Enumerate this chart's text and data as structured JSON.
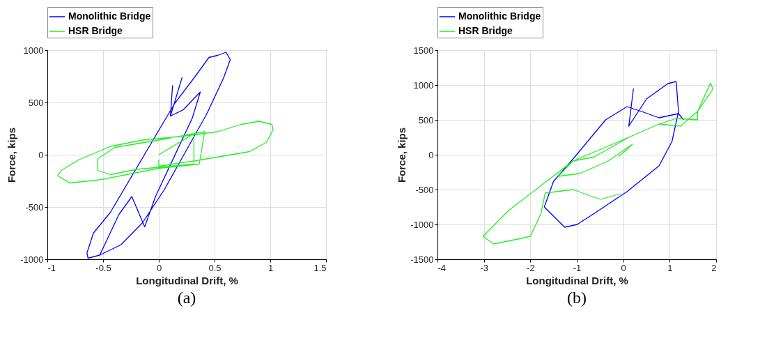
{
  "chart_data": [
    {
      "type": "line",
      "xlabel": "Longitudinal Drift, %",
      "ylabel": "Force, kips",
      "xlim": [
        -1,
        1.5
      ],
      "xticks": [
        -1,
        -0.5,
        0,
        0.5,
        1,
        1.5
      ],
      "ylim": [
        -1000,
        1000
      ],
      "yticks": [
        -1000,
        -500,
        0,
        500,
        1000
      ],
      "grid": true,
      "legend": "top",
      "annotations": [
        "(a)"
      ],
      "series": [
        {
          "name": "Monolithic Bridge",
          "color": "#0000ff",
          "line_style": "solid",
          "x": [
            0.209,
            0.104,
            0.123,
            0.104,
            0.219,
            0.372,
            0.3,
            -0.03,
            -0.127,
            -0.242,
            -0.357,
            -0.53,
            -0.635,
            -0.645,
            -0.587,
            -0.434,
            0.142,
            0.334,
            0.449,
            0.526,
            0.603,
            0.641,
            0.583,
            0.43,
            0.046,
            -0.146,
            -0.338,
            -0.53
          ],
          "values": [
            740,
            370,
            660,
            370,
            430,
            600,
            350,
            -400,
            -690,
            -400,
            -570,
            -960,
            -990,
            -940,
            -750,
            -550,
            490,
            760,
            930,
            950,
            980,
            910,
            740,
            390,
            -340,
            -650,
            -860,
            -960
          ]
        },
        {
          "name": "HSR Bridge",
          "color": "#22ee22",
          "line_style": "solid",
          "x": [
            0,
            0.315,
            0.315,
            -0.203,
            -0.434,
            -0.549,
            -0.549,
            -0.395,
            0,
            0.411,
            0.363,
            0,
            -0.53,
            -0.8,
            -0.908,
            -0.875,
            -0.722,
            -0.434,
            -0.146,
            0.238,
            0.526,
            0.737,
            0.9,
            1.015,
            1.025,
            0.967,
            0.814,
            0.372,
            0,
            0
          ],
          "values": [
            0,
            200,
            -90,
            -140,
            -190,
            -150,
            -40,
            70,
            140,
            220,
            -90,
            -130,
            -240,
            -270,
            -200,
            -150,
            -50,
            80,
            140,
            180,
            220,
            290,
            320,
            290,
            240,
            120,
            30,
            -50,
            -110,
            -50
          ]
        }
      ]
    },
    {
      "type": "line",
      "xlabel": "Longitudinal Drift, %",
      "ylabel": "Force, kips",
      "xlim": [
        -4,
        2
      ],
      "xticks": [
        -4,
        -3,
        -2,
        -1,
        0,
        1,
        2
      ],
      "ylim": [
        -1500,
        1500
      ],
      "yticks": [
        -1500,
        -1000,
        -500,
        0,
        500,
        1000,
        1500
      ],
      "grid": true,
      "legend": "top",
      "annotations": [
        "(b)"
      ],
      "series": [
        {
          "name": "Monolithic Bridge",
          "color": "#0000ff",
          "line_style": "solid",
          "x": [
            0.22,
            0.12,
            0.5,
            0.96,
            1.14,
            1.19,
            1.05,
            0.77,
            0.08,
            -0.62,
            -0.99,
            -1.26,
            -1.7,
            -1.5,
            -1.08,
            -0.38,
            0.08,
            0.4,
            0.77,
            1.19,
            1.3
          ],
          "values": [
            950,
            410,
            800,
            1020,
            1050,
            620,
            190,
            -160,
            -530,
            -840,
            -1000,
            -1040,
            -750,
            -380,
            -60,
            500,
            690,
            620,
            530,
            590,
            500
          ]
        },
        {
          "name": "HSR Bridge",
          "color": "#22ee22",
          "line_style": "solid",
          "x": [
            -0.1,
            0.2,
            -0.35,
            -0.94,
            -1.4,
            -1.08,
            -0.62,
            0.12,
            0.77,
            1.14,
            1.6,
            1.6,
            1.88,
            1.93,
            1.6,
            1.23,
            0.77,
            0.12,
            -1.08,
            -2.47,
            -3.02,
            -2.79,
            -2.19,
            -2,
            -1.77,
            -1.68,
            -1.08,
            -0.71,
            -0.48,
            -0.06
          ],
          "values": [
            -30,
            150,
            -100,
            -270,
            -310,
            -90,
            -30,
            250,
            440,
            520,
            500,
            620,
            1030,
            940,
            620,
            410,
            440,
            250,
            -90,
            -800,
            -1170,
            -1280,
            -1200,
            -1170,
            -840,
            -550,
            -500,
            -590,
            -640,
            -560
          ]
        }
      ]
    }
  ]
}
